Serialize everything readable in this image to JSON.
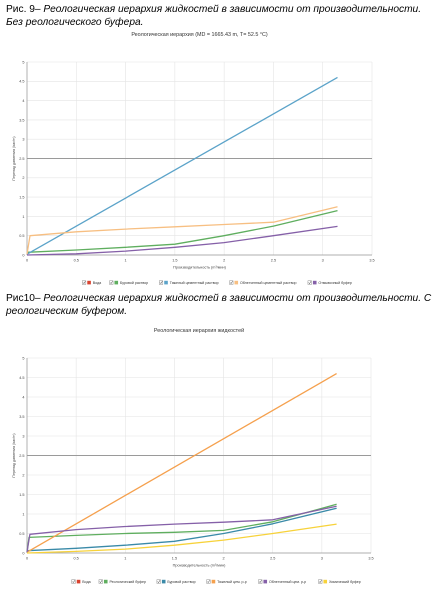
{
  "figure1": {
    "caption_prefix": "Рис. 9–",
    "caption_text": " Реологическая иерархия жидкостей в зависимости от производительности. Без реологического буфера.",
    "chart_data": {
      "type": "line",
      "title": "Реологическая иерархия (MD = 1665.43 m, T= 52.5 °C)",
      "xlabel": "Производительность (m³/мин)",
      "ylabel": "Перепад давления (bar/m)",
      "xlim": [
        0,
        3.5
      ],
      "ylim": [
        0,
        5
      ],
      "xticks": [
        "0",
        "0.5",
        "1",
        "1.5",
        "2",
        "2.5",
        "3",
        "3.5"
      ],
      "yticks": [
        "0",
        "0.5",
        "1",
        "1.5",
        "2",
        "2.5",
        "3",
        "3.5",
        "4",
        "4.5",
        "5"
      ],
      "reference_line_y": 2.5,
      "grid": true,
      "legend_position": "bottom",
      "series": [
        {
          "name": "Вода",
          "color": "#d9432f",
          "x": [],
          "y": []
        },
        {
          "name": "Буровой раствор",
          "color": "#5fae5f",
          "x": [
            0,
            0.5,
            1,
            1.5,
            2,
            2.5,
            3.15
          ],
          "y": [
            0.07,
            0.13,
            0.2,
            0.28,
            0.5,
            0.75,
            1.15
          ]
        },
        {
          "name": "Тяжелый цементный раствор",
          "color": "#5ba3c9",
          "x": [
            0,
            3.15
          ],
          "y": [
            0.02,
            4.6
          ]
        },
        {
          "name": "Облегченный цементный раствор",
          "color": "#f7bf82",
          "x": [
            0,
            0.03,
            0.5,
            1,
            1.5,
            2,
            2.5,
            3.15
          ],
          "y": [
            0.02,
            0.5,
            0.6,
            0.67,
            0.73,
            0.79,
            0.85,
            1.25
          ]
        },
        {
          "name": "Отмывочный буфер",
          "color": "#8560a8",
          "x": [
            0,
            0.5,
            1,
            1.5,
            2,
            2.5,
            3.15
          ],
          "y": [
            0,
            0.03,
            0.1,
            0.2,
            0.32,
            0.5,
            0.74
          ]
        }
      ]
    }
  },
  "figure2": {
    "caption_prefix": "Рис10–",
    "caption_text": " Реологическая иерархия жидкостей в зависимости от производительности. С реологическим буфером.",
    "chart_data": {
      "type": "line",
      "title": "Реологическая иерархия жидкостей",
      "xlabel": "Производительность (m³/мин)",
      "ylabel": "Перепад давления (bar/m)",
      "xlim": [
        0,
        3.5
      ],
      "ylim": [
        0,
        5
      ],
      "xticks": [
        "0",
        "0.5",
        "1",
        "1.5",
        "2",
        "2.5",
        "3",
        "3.5"
      ],
      "yticks": [
        "0",
        "0.5",
        "1",
        "1.5",
        "2",
        "2.5",
        "3",
        "3.5",
        "4",
        "4.5",
        "5"
      ],
      "reference_line_y": 2.5,
      "grid": true,
      "legend_position": "bottom",
      "series": [
        {
          "name": "Вода",
          "color": "#d9432f",
          "x": [],
          "y": []
        },
        {
          "name": "Реологический буфер",
          "color": "#5fae5f",
          "x": [
            0,
            0.02,
            0.5,
            1,
            1.5,
            2,
            2.5,
            3.15
          ],
          "y": [
            0.02,
            0.4,
            0.45,
            0.5,
            0.53,
            0.58,
            0.8,
            1.25
          ]
        },
        {
          "name": "Буровой раствор",
          "color": "#3a8aa8",
          "x": [
            0,
            0.5,
            1,
            1.5,
            2,
            2.5,
            3.15
          ],
          "y": [
            0.06,
            0.12,
            0.2,
            0.3,
            0.5,
            0.75,
            1.15
          ]
        },
        {
          "name": "Тяжелый цем. р-р",
          "color": "#f5a04d",
          "x": [
            0,
            3.15
          ],
          "y": [
            0.02,
            4.6
          ]
        },
        {
          "name": "Облегченный цем. р-р",
          "color": "#8560a8",
          "x": [
            0,
            0.03,
            0.5,
            1,
            1.5,
            2,
            2.5,
            3.15
          ],
          "y": [
            0.02,
            0.48,
            0.6,
            0.68,
            0.74,
            0.79,
            0.85,
            1.2
          ]
        },
        {
          "name": "Химический буфер",
          "color": "#f7d23a",
          "x": [
            0,
            0.5,
            1,
            1.5,
            2,
            2.5,
            3.15
          ],
          "y": [
            0,
            0.04,
            0.1,
            0.2,
            0.33,
            0.5,
            0.74
          ]
        }
      ]
    }
  }
}
